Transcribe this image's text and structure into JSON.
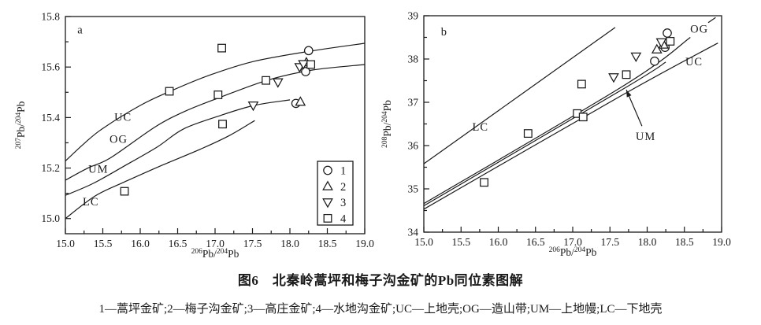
{
  "colors": {
    "ink": "#1a1a1a",
    "background": "#ffffff"
  },
  "chart_data": {
    "figure_caption": "图6　北秦岭蒿坪和梅子沟金矿的Pb同位素图解",
    "figure_footnote": "1—蒿坪金矿;2—梅子沟金矿;3—高庄金矿;4—水地沟金矿;UC—上地壳;OG—造山带;UM—上地幔;LC—下地壳",
    "panels": [
      {
        "panel_label": "a",
        "panel_label_pos": [
          15.16,
          15.748
        ],
        "type": "scatter",
        "x_axis": {
          "range": [
            15.0,
            19.0
          ],
          "tick_values": [
            15.0,
            15.5,
            16.0,
            16.5,
            17.0,
            17.5,
            18.0,
            18.5,
            19.0
          ],
          "tick_labels": [
            "15.0",
            "15.5",
            "16.0",
            "16.5",
            "17.0",
            "17.5",
            "18.0",
            "18.5",
            "19.0"
          ],
          "minor_step": 0.25,
          "title_parts": [
            [
              "206",
              true
            ],
            [
              "Pb/",
              false
            ],
            [
              "204",
              true
            ],
            [
              "Pb",
              false
            ]
          ]
        },
        "y_axis": {
          "range": [
            14.94,
            15.8
          ],
          "tick_values": [
            15.0,
            15.2,
            15.4,
            15.6,
            15.8
          ],
          "tick_labels": [
            "15.0",
            "15.2",
            "15.4",
            "15.6",
            "15.8"
          ],
          "minor_step": 0.1,
          "title_parts": [
            [
              "207",
              true
            ],
            [
              "Pb/",
              false
            ],
            [
              "204",
              true
            ],
            [
              "Pb",
              false
            ]
          ]
        },
        "reference_curves": [
          {
            "name": "UC",
            "label": "UC",
            "label_pos": [
              15.77,
              15.402
            ],
            "points": [
              [
                15.0,
                15.228
              ],
              [
                15.25,
                15.297
              ],
              [
                15.5,
                15.357
              ],
              [
                16.0,
                15.448
              ],
              [
                16.4,
                15.504
              ],
              [
                16.9,
                15.565
              ],
              [
                17.5,
                15.621
              ],
              [
                18.25,
                15.662
              ],
              [
                19.0,
                15.694
              ]
            ]
          },
          {
            "name": "OG",
            "label": "OG",
            "label_pos": [
              15.71,
              15.315
            ],
            "points": [
              [
                15.0,
                15.152
              ],
              [
                15.3,
                15.2
              ],
              [
                15.6,
                15.24
              ],
              [
                16.2,
                15.363
              ],
              [
                16.6,
                15.425
              ],
              [
                17.05,
                15.478
              ],
              [
                17.7,
                15.548
              ],
              [
                18.3,
                15.588
              ],
              [
                19.0,
                15.61
              ]
            ]
          },
          {
            "name": "UM",
            "label": "UM",
            "label_pos": [
              15.44,
              15.197
            ],
            "points": [
              [
                15.0,
                15.092
              ],
              [
                15.37,
                15.139
              ],
              [
                15.78,
                15.207
              ],
              [
                16.23,
                15.284
              ],
              [
                16.58,
                15.355
              ],
              [
                17.07,
                15.408
              ],
              [
                17.52,
                15.448
              ],
              [
                18.0,
                15.47
              ]
            ]
          },
          {
            "name": "LC",
            "label": "LC",
            "label_pos": [
              15.34,
              15.068
            ],
            "points": [
              [
                15.0,
                15.0
              ],
              [
                15.4,
                15.09
              ],
              [
                15.79,
                15.145
              ],
              [
                16.26,
                15.207
              ],
              [
                16.83,
                15.278
              ],
              [
                17.2,
                15.33
              ],
              [
                17.53,
                15.388
              ]
            ]
          }
        ],
        "series": [
          {
            "legend": "1",
            "marker": "circle",
            "points": [
              [
                18.25,
                15.665
              ],
              [
                18.21,
                15.582
              ],
              [
                18.08,
                15.456
              ]
            ]
          },
          {
            "legend": "2",
            "marker": "triangle-up",
            "points": [
              [
                18.22,
                15.618
              ],
              [
                18.14,
                15.462
              ]
            ]
          },
          {
            "legend": "3",
            "marker": "triangle-down",
            "points": [
              [
                17.51,
                15.448
              ],
              [
                17.84,
                15.54
              ],
              [
                18.13,
                15.6
              ],
              [
                18.18,
                15.612
              ]
            ]
          },
          {
            "legend": "4",
            "marker": "square",
            "points": [
              [
                15.79,
                15.108
              ],
              [
                16.39,
                15.504
              ],
              [
                17.04,
                15.49
              ],
              [
                17.09,
                15.675
              ],
              [
                17.1,
                15.374
              ],
              [
                17.68,
                15.547
              ],
              [
                18.28,
                15.61
              ]
            ]
          }
        ],
        "legend": {
          "entries": [
            {
              "marker": "circle",
              "label": "1"
            },
            {
              "marker": "triangle-up",
              "label": "2"
            },
            {
              "marker": "triangle-down",
              "label": "3"
            },
            {
              "marker": "square",
              "label": "4"
            }
          ]
        }
      },
      {
        "panel_label": "b",
        "panel_label_pos": [
          15.23,
          38.64
        ],
        "type": "scatter",
        "x_axis": {
          "range": [
            15.0,
            19.0
          ],
          "tick_values": [
            15.0,
            15.5,
            16.0,
            16.5,
            17.0,
            17.5,
            18.0,
            18.5,
            19.0
          ],
          "tick_labels": [
            "15.0",
            "15.5",
            "16.0",
            "16.5",
            "17.0",
            "17.5",
            "18.0",
            "18.5",
            "19.0"
          ],
          "minor_step": 0.25,
          "title_parts": [
            [
              "206",
              true
            ],
            [
              "Pb/",
              false
            ],
            [
              "204",
              true
            ],
            [
              "Pb",
              false
            ]
          ]
        },
        "y_axis": {
          "range": [
            34.0,
            39.0
          ],
          "tick_values": [
            34,
            35,
            36,
            37,
            38,
            39
          ],
          "tick_labels": [
            "34",
            "35",
            "36",
            "37",
            "38",
            "39"
          ],
          "minor_step": 0.5,
          "title_parts": [
            [
              "208",
              true
            ],
            [
              "Pb/",
              false
            ],
            [
              "204",
              true
            ],
            [
              "Pb",
              false
            ]
          ]
        },
        "reference_curves": [
          {
            "name": "LC",
            "label": "LC",
            "label_pos": [
              15.76,
              36.44
            ],
            "points": [
              [
                15.0,
                35.58
              ],
              [
                17.57,
                38.73
              ]
            ]
          },
          {
            "name": "OG",
            "label": "OG",
            "label_pos": [
              18.7,
              38.7
            ],
            "points": [
              [
                15.0,
                34.66
              ],
              [
                17.7,
                37.4
              ],
              [
                18.58,
                38.5
              ]
            ]
          },
          {
            "name": "OG-extension",
            "label": "",
            "label_pos": null,
            "points": [
              [
                18.82,
                38.84
              ],
              [
                18.92,
                38.96
              ]
            ]
          },
          {
            "name": "UM",
            "label": "",
            "label_pos": null,
            "points": [
              [
                15.0,
                34.61
              ],
              [
                17.7,
                37.33
              ],
              [
                18.25,
                37.93
              ]
            ]
          },
          {
            "name": "UC",
            "label": "UC",
            "label_pos": [
              18.63,
              37.95
            ],
            "points": [
              [
                15.0,
                34.53
              ],
              [
                17.7,
                37.2
              ],
              [
                18.95,
                38.37
              ]
            ]
          }
        ],
        "annotations": [
          {
            "type": "arrow-label",
            "text": "UM",
            "text_pos": [
              17.98,
              36.22
            ],
            "from": [
              17.93,
              36.45
            ],
            "to": [
              17.72,
              37.29
            ]
          }
        ],
        "series": [
          {
            "legend": "1",
            "marker": "circle",
            "points": [
              [
                18.27,
                38.6
              ],
              [
                18.24,
                38.27
              ],
              [
                18.1,
                37.95
              ]
            ]
          },
          {
            "legend": "2",
            "marker": "triangle-up",
            "points": [
              [
                18.22,
                38.33
              ],
              [
                18.13,
                38.22
              ]
            ]
          },
          {
            "legend": "3",
            "marker": "triangle-down",
            "points": [
              [
                17.55,
                37.58
              ],
              [
                17.85,
                38.06
              ],
              [
                18.19,
                38.39
              ]
            ]
          },
          {
            "legend": "4",
            "marker": "square",
            "points": [
              [
                15.81,
                35.15
              ],
              [
                16.4,
                36.28
              ],
              [
                17.06,
                36.74
              ],
              [
                17.14,
                36.66
              ],
              [
                17.12,
                37.42
              ],
              [
                17.72,
                37.64
              ],
              [
                18.31,
                38.41
              ]
            ]
          }
        ],
        "legend": null
      }
    ]
  }
}
